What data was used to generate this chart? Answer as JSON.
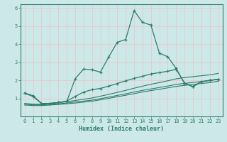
{
  "xlabel": "Humidex (Indice chaleur)",
  "bg_color": "#cce8e8",
  "grid_color": "#e8c8c8",
  "line_color": "#2e7d6e",
  "xlim": [
    -0.5,
    23.5
  ],
  "ylim": [
    0,
    6.2
  ],
  "xticks": [
    0,
    1,
    2,
    3,
    4,
    5,
    6,
    7,
    8,
    9,
    10,
    11,
    12,
    13,
    14,
    15,
    16,
    17,
    18,
    19,
    20,
    21,
    22,
    23
  ],
  "yticks": [
    1,
    2,
    3,
    4,
    5,
    6
  ],
  "line1_x": [
    0,
    1,
    2,
    3,
    4,
    5,
    6,
    7,
    8,
    9,
    10,
    11,
    12,
    13,
    14,
    15,
    16,
    17,
    18,
    19,
    20,
    21,
    22,
    23
  ],
  "line1_y": [
    1.3,
    1.15,
    0.72,
    0.72,
    0.77,
    0.82,
    2.08,
    2.62,
    2.58,
    2.45,
    3.3,
    4.1,
    4.25,
    5.85,
    5.2,
    5.05,
    3.5,
    3.3,
    2.65,
    1.82,
    1.65,
    1.92,
    2.0,
    2.05
  ],
  "line2_x": [
    0,
    1,
    2,
    3,
    4,
    5,
    6,
    7,
    8,
    9,
    10,
    11,
    12,
    13,
    14,
    15,
    16,
    17,
    18,
    19,
    20,
    21,
    22,
    23
  ],
  "line2_y": [
    1.28,
    1.1,
    0.72,
    0.72,
    0.77,
    0.85,
    1.1,
    1.35,
    1.48,
    1.55,
    1.68,
    1.82,
    1.97,
    2.1,
    2.22,
    2.35,
    2.42,
    2.5,
    2.6,
    1.85,
    1.65,
    1.92,
    2.0,
    2.05
  ],
  "line3_x": [
    0,
    1,
    2,
    3,
    4,
    5,
    6,
    7,
    8,
    9,
    10,
    11,
    12,
    13,
    14,
    15,
    16,
    17,
    18,
    19,
    20,
    21,
    22,
    23
  ],
  "line3_y": [
    0.72,
    0.68,
    0.68,
    0.72,
    0.76,
    0.82,
    0.88,
    0.95,
    1.02,
    1.12,
    1.22,
    1.33,
    1.44,
    1.56,
    1.67,
    1.78,
    1.87,
    1.97,
    2.08,
    2.15,
    2.2,
    2.25,
    2.3,
    2.38
  ],
  "line4_x": [
    0,
    1,
    2,
    3,
    4,
    5,
    6,
    7,
    8,
    9,
    10,
    11,
    12,
    13,
    14,
    15,
    16,
    17,
    18,
    19,
    20,
    21,
    22,
    23
  ],
  "line4_y": [
    0.68,
    0.64,
    0.64,
    0.67,
    0.7,
    0.74,
    0.8,
    0.85,
    0.9,
    0.98,
    1.07,
    1.16,
    1.25,
    1.35,
    1.44,
    1.52,
    1.6,
    1.68,
    1.77,
    1.83,
    1.88,
    1.93,
    1.98,
    2.06
  ],
  "line5_x": [
    0,
    1,
    2,
    3,
    4,
    5,
    6,
    7,
    8,
    9,
    10,
    11,
    12,
    13,
    14,
    15,
    16,
    17,
    18,
    19,
    20,
    21,
    22,
    23
  ],
  "line5_y": [
    0.63,
    0.6,
    0.6,
    0.63,
    0.66,
    0.7,
    0.74,
    0.79,
    0.84,
    0.92,
    1.0,
    1.09,
    1.17,
    1.26,
    1.35,
    1.43,
    1.5,
    1.58,
    1.66,
    1.72,
    1.77,
    1.82,
    1.87,
    1.95
  ]
}
